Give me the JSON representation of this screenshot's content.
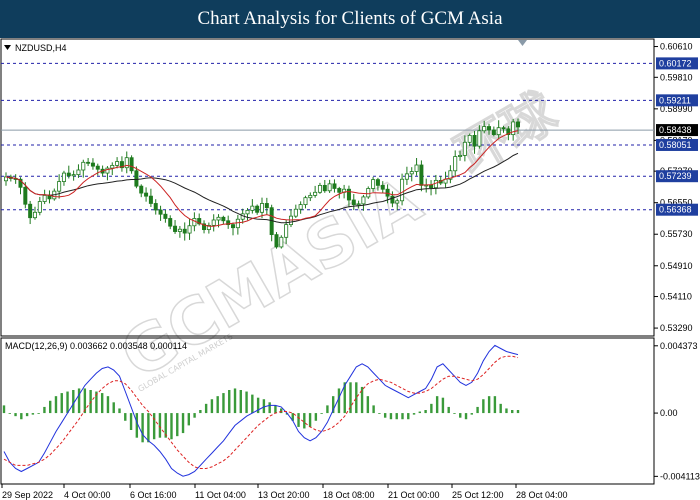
{
  "header": {
    "title": "Chart Analysis for Clients of GCM Asia"
  },
  "watermark": {
    "brand": "GCMASIA",
    "chinese": "环球",
    "tagline": "GLOBAL CAPITAL MARKETS"
  },
  "colors": {
    "background": "#ffffff",
    "header": "#0f3d5c",
    "candle_up": "#1e7a1e",
    "candle_down": "#1e7a1e",
    "ma_fast": "#cc2222",
    "ma_slow": "#222222",
    "level_line": "#2222aa",
    "level_tag": "#1f3f9f",
    "price_tag": "#000000",
    "macd_line": "#2233dd",
    "signal_line": "#dd2222",
    "histogram": "#3a9a3a"
  },
  "chart_data": [
    {
      "type": "candlestick",
      "symbol_label": "NZDUSD,H4",
      "y_ticks": [
        "0.60610",
        "0.59810",
        "0.58990",
        "0.58170",
        "0.57370",
        "0.56550",
        "0.55730",
        "0.54910",
        "0.54110",
        "0.53290"
      ],
      "ylim": [
        0.5311,
        0.6078
      ],
      "level_tags": [
        "0.60172",
        "0.59211",
        "0.58051",
        "0.57239",
        "0.56368"
      ],
      "current_price": "0.58438",
      "x_ticks": [
        "29 Sep 2022",
        "4 Oct 00:00",
        "6 Oct 16:00",
        "11 Oct 04:00",
        "13 Oct 20:00",
        "18 Oct 08:00",
        "21 Oct 00:00",
        "25 Oct 12:00",
        "28 Oct 04:00"
      ],
      "series": [
        {
          "name": "",
          "close": [
            0.5722,
            0.5718,
            0.5716,
            0.5695,
            0.5651,
            0.5616,
            0.563,
            0.5658,
            0.5674,
            0.5665,
            0.5685,
            0.571,
            0.5732,
            0.5725,
            0.5728,
            0.574,
            0.576,
            0.5758,
            0.575,
            0.5742,
            0.5732,
            0.5745,
            0.5752,
            0.5762,
            0.5746,
            0.5772,
            0.5738,
            0.5698,
            0.568,
            0.5672,
            0.5653,
            0.5636,
            0.5625,
            0.5614,
            0.5594,
            0.558,
            0.5586,
            0.5576,
            0.5595,
            0.5614,
            0.56,
            0.5585,
            0.5596,
            0.561,
            0.5617,
            0.5608,
            0.5598,
            0.559,
            0.5612,
            0.5626,
            0.5635,
            0.5646,
            0.563,
            0.5653,
            0.5642,
            0.5572,
            0.554,
            0.5565,
            0.5598,
            0.562,
            0.5638,
            0.565,
            0.5668,
            0.5674,
            0.5682,
            0.57,
            0.5686,
            0.5704,
            0.5692,
            0.5682,
            0.569,
            0.5662,
            0.565,
            0.5652,
            0.567,
            0.5692,
            0.5715,
            0.57,
            0.569,
            0.5672,
            0.5654,
            0.566,
            0.5716,
            0.573,
            0.5736,
            0.5753,
            0.57,
            0.5701,
            0.5694,
            0.5713,
            0.5706,
            0.5716,
            0.5738,
            0.5775,
            0.5778,
            0.5812,
            0.583,
            0.5802,
            0.5842,
            0.5853,
            0.5844,
            0.5832,
            0.585,
            0.5847,
            0.5832,
            0.5865,
            0.5852
          ]
        },
        {
          "name": "",
          "values": []
        },
        {
          "name": "",
          "values": []
        }
      ]
    },
    {
      "type": "line",
      "indicator_label": "MACD(12,26,9) 0.003662 0.003548 0.000114",
      "y_ticks": [
        "0.004373",
        "0.00",
        "-0.004113"
      ],
      "ylim": [
        -0.00435,
        0.00462
      ],
      "series": [
        {
          "name": "",
          "values": [
            -0.0025,
            -0.0032,
            -0.0036,
            -0.0038,
            -0.0036,
            -0.0034,
            -0.0032,
            -0.0026,
            -0.0019,
            -0.0012,
            -0.0006,
            0.0,
            0.0006,
            0.0012,
            0.0018,
            0.0022,
            0.0026,
            0.0029,
            0.003,
            0.0028,
            0.0024,
            0.0014,
            0.0004,
            -0.0006,
            -0.0014,
            -0.0018,
            -0.0021,
            -0.0025,
            -0.003,
            -0.0036,
            -0.0039,
            -0.0041,
            -0.004,
            -0.0038,
            -0.0034,
            -0.003,
            -0.0026,
            -0.0022,
            -0.0018,
            -0.0013,
            -0.0008,
            -0.0005,
            -0.0002,
            0.0,
            0.0002,
            0.0004,
            0.0005,
            0.0005,
            0.0004,
            0.0,
            -0.0005,
            -0.0012,
            -0.0016,
            -0.0018,
            -0.0016,
            -0.0012,
            -0.0006,
            0.0002,
            0.001,
            0.0018,
            0.0024,
            0.003,
            0.0032,
            0.003,
            0.0026,
            0.0022,
            0.0018,
            0.0016,
            0.0014,
            0.0012,
            0.001,
            0.0012,
            0.0014,
            0.0016,
            0.0022,
            0.003,
            0.0032,
            0.0028,
            0.0024,
            0.002,
            0.0018,
            0.002,
            0.0026,
            0.0034,
            0.004,
            0.0044,
            0.0042,
            0.004,
            0.0039,
            0.0038
          ]
        },
        {
          "name": "",
          "values": [
            -0.003,
            -0.0032,
            -0.0034,
            -0.0034,
            -0.0034,
            -0.0033,
            -0.0032,
            -0.003,
            -0.0027,
            -0.0023,
            -0.0019,
            -0.0014,
            -0.0009,
            -0.0004,
            0.0002,
            0.0007,
            0.0012,
            0.0016,
            0.0019,
            0.0021,
            0.0021,
            0.0019,
            0.0015,
            0.001,
            0.0005,
            0.0001,
            -0.0004,
            -0.0009,
            -0.0014,
            -0.0019,
            -0.0024,
            -0.0028,
            -0.0032,
            -0.0035,
            -0.0036,
            -0.0036,
            -0.0035,
            -0.0033,
            -0.0031,
            -0.0028,
            -0.0024,
            -0.002,
            -0.0016,
            -0.0012,
            -0.0008,
            -0.0005,
            -0.0002,
            0.0,
            0.0001,
            0.0001,
            0.0,
            -0.0003,
            -0.0006,
            -0.0009,
            -0.0011,
            -0.0012,
            -0.0011,
            -0.0009,
            -0.0006,
            -0.0002,
            0.0004,
            0.001,
            0.0015,
            0.0019,
            0.0021,
            0.0022,
            0.0021,
            0.002,
            0.0018,
            0.0016,
            0.0014,
            0.0013,
            0.0013,
            0.0014,
            0.0016,
            0.0019,
            0.0022,
            0.0024,
            0.0024,
            0.0023,
            0.0022,
            0.0021,
            0.0022,
            0.0025,
            0.0029,
            0.0033,
            0.0036,
            0.0037,
            0.0037,
            0.0036
          ]
        }
      ]
    }
  ]
}
